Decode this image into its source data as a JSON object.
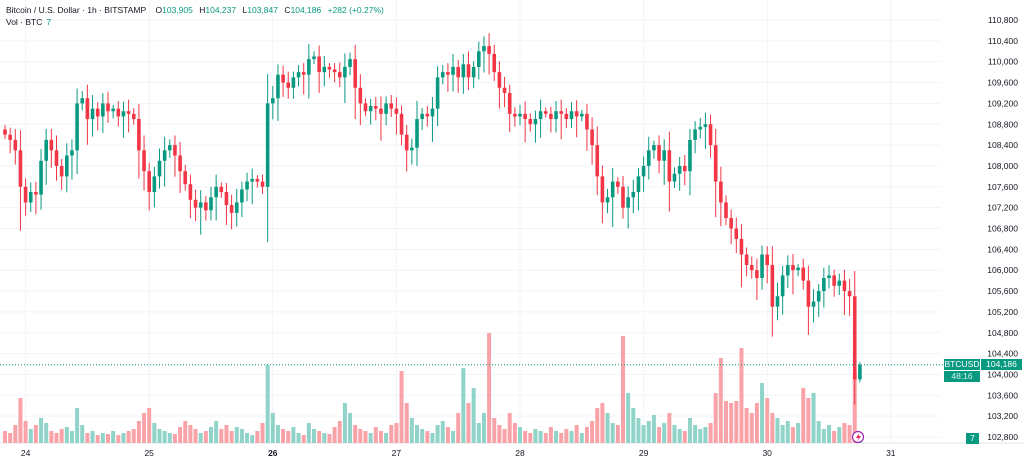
{
  "header": {
    "symbol_title": "Bitcoin / U.S. Dollar · 1h · BITSTAMP",
    "open_label": "O",
    "open": "103,905",
    "high_label": "H",
    "high": "104,237",
    "low_label": "L",
    "low": "103,847",
    "close_label": "C",
    "close": "104,186",
    "change": "+282 (+0.27%)",
    "volume_label": "Vol · BTC",
    "volume_value": "7"
  },
  "price_tag": {
    "symbol": "BTCUSD",
    "price": "104,186",
    "countdown": "48:16"
  },
  "volume_tag": "7",
  "colors": {
    "up": "#089981",
    "down": "#f23645",
    "vol_up": "#8fd3c9",
    "vol_down": "#f9a3a9",
    "grid": "#f0f3fa",
    "text": "#131722"
  },
  "chart_data": {
    "type": "candlestick",
    "interval": "1h",
    "yaxis": {
      "min": 102800,
      "max": 110800,
      "step": 400,
      "tick_labels": [
        "110,800",
        "110,400",
        "110,000",
        "109,600",
        "109,200",
        "108,800",
        "108,400",
        "108,000",
        "107,600",
        "107,200",
        "106,800",
        "106,400",
        "106,000",
        "105,600",
        "105,200",
        "104,800",
        "104,400",
        "104,000",
        "103,600",
        "103,200",
        "102,800"
      ]
    },
    "xaxis": {
      "tick_labels": [
        "24",
        "25",
        "26",
        "27",
        "28",
        "29",
        "30",
        "31"
      ],
      "bold_labels": [
        "26"
      ],
      "first_tick_index": 4,
      "candles_per_day": 24
    },
    "first_open": 108700,
    "closes": [
      108600,
      108500,
      108300,
      107600,
      107300,
      107500,
      107450,
      108100,
      108500,
      108300,
      108000,
      107800,
      108200,
      108300,
      109200,
      109300,
      108900,
      109100,
      108950,
      109200,
      109050,
      109100,
      108950,
      109050,
      109000,
      108900,
      108300,
      107900,
      107500,
      107800,
      108100,
      108300,
      108400,
      108200,
      107900,
      107650,
      107350,
      107200,
      107300,
      107150,
      107400,
      107600,
      107500,
      107250,
      107100,
      107300,
      107550,
      107700,
      107750,
      107700,
      107600,
      109200,
      109300,
      109750,
      109600,
      109500,
      109700,
      109800,
      109750,
      110050,
      110100,
      109800,
      109900,
      109850,
      109800,
      109700,
      109900,
      110050,
      109500,
      109200,
      109050,
      109150,
      109100,
      109000,
      109200,
      109100,
      109000,
      108600,
      108300,
      108350,
      108900,
      109000,
      108950,
      109100,
      109700,
      109800,
      109750,
      109900,
      109700,
      109950,
      109700,
      109900,
      110200,
      110300,
      110150,
      109800,
      109500,
      109400,
      109000,
      108950,
      109000,
      108900,
      108800,
      108900,
      109050,
      109000,
      108900,
      109050,
      109000,
      108900,
      109050,
      108950,
      109000,
      108700,
      108400,
      107800,
      107300,
      107400,
      107700,
      107600,
      107200,
      107400,
      107500,
      107800,
      108000,
      108300,
      108400,
      108100,
      108300,
      107700,
      107850,
      108000,
      107900,
      108500,
      108700,
      108750,
      108800,
      108400,
      107700,
      107300,
      107000,
      106800,
      106600,
      106300,
      106100,
      106000,
      105850,
      106300,
      106100,
      105300,
      105500,
      105900,
      106100,
      106000,
      106050,
      105800,
      105300,
      105400,
      105600,
      105850,
      105900,
      105700,
      105800,
      105600,
      105500,
      103905,
      104186
    ],
    "last_candle": {
      "open": 103905,
      "high": 104237,
      "low": 103847,
      "close": 104186
    },
    "volumes": [
      12,
      10,
      18,
      45,
      22,
      14,
      18,
      25,
      20,
      12,
      10,
      14,
      16,
      12,
      35,
      18,
      10,
      12,
      8,
      10,
      9,
      12,
      8,
      10,
      12,
      14,
      22,
      30,
      35,
      20,
      14,
      12,
      10,
      9,
      16,
      22,
      18,
      14,
      10,
      12,
      16,
      22,
      14,
      18,
      12,
      16,
      14,
      10,
      8,
      12,
      20,
      78,
      30,
      18,
      14,
      12,
      16,
      10,
      8,
      20,
      14,
      12,
      10,
      9,
      16,
      22,
      40,
      30,
      18,
      14,
      12,
      10,
      16,
      12,
      10,
      18,
      20,
      72,
      40,
      25,
      18,
      14,
      12,
      10,
      18,
      22,
      16,
      12,
      30,
      75,
      40,
      55,
      20,
      30,
      110,
      25,
      18,
      14,
      30,
      20,
      16,
      12,
      10,
      14,
      12,
      10,
      16,
      12,
      10,
      14,
      12,
      18,
      10,
      16,
      22,
      35,
      40,
      30,
      20,
      18,
      107,
      50,
      35,
      25,
      18,
      22,
      28,
      16,
      20,
      30,
      18,
      14,
      12,
      25,
      18,
      14,
      16,
      20,
      50,
      85,
      42,
      40,
      42,
      95,
      35,
      30,
      40,
      60,
      45,
      30,
      25,
      18,
      22,
      16,
      20,
      55,
      45,
      50,
      22,
      14,
      18,
      12,
      16,
      20,
      18,
      70,
      7
    ]
  }
}
